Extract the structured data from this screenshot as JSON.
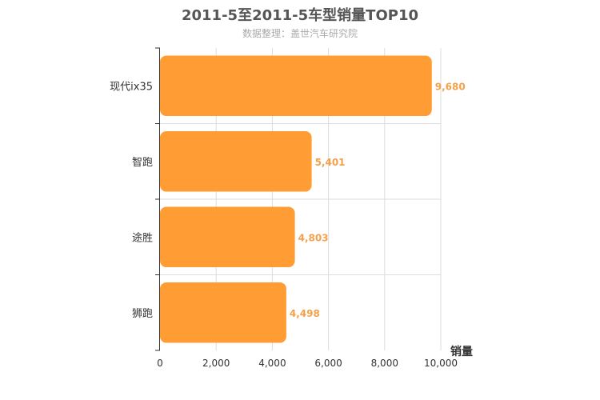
{
  "chart_data": {
    "type": "bar",
    "orientation": "horizontal",
    "title": "2011-5至2011-5车型销量TOP10",
    "subtitle": "数据整理：盖世汽车研究院",
    "xlabel": "销量",
    "ylabel": "",
    "categories": [
      "现代ix35",
      "智跑",
      "途胜",
      "狮跑"
    ],
    "values": [
      9680,
      5401,
      4803,
      4498
    ],
    "value_labels": [
      "9,680",
      "5,401",
      "4,803",
      "4,498"
    ],
    "xlim": [
      0,
      10000
    ],
    "xticks": [
      0,
      2000,
      4000,
      6000,
      8000,
      10000
    ],
    "xtick_labels": [
      "0",
      "2,000",
      "4,000",
      "6,000",
      "8,000",
      "10,000"
    ],
    "grid": true,
    "colors": {
      "bar": "#ff9c33",
      "value_label": "#f5a04a",
      "grid": "#dddddd",
      "axis": "#333333"
    }
  }
}
